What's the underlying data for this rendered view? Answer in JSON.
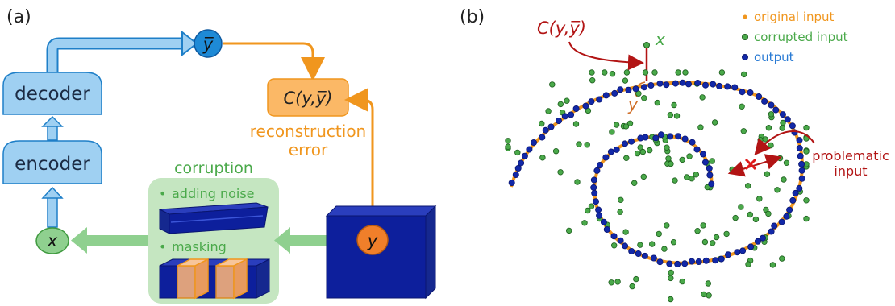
{
  "panels": {
    "a": "(a)",
    "b": "(b)"
  },
  "left": {
    "decoder": "decoder",
    "encoder": "encoder",
    "y_bar": "y̅",
    "x": "x",
    "y": "y",
    "cost": "C(y,y̅)",
    "recon_line1": "reconstruction",
    "recon_line2": "error",
    "corruption_title": "corruption",
    "noise": "adding noise",
    "masking": "masking"
  },
  "right": {
    "cost": "C(y,y̅)",
    "x": "x",
    "y": "y",
    "problem_line1": "problematic",
    "problem_line2": "input",
    "legend": [
      {
        "label": "original input",
        "color": "#f0961e"
      },
      {
        "label": "corrupted input",
        "color": "#4aa94a"
      },
      {
        "label": "output",
        "color": "#2a7bd4"
      }
    ]
  },
  "colors": {
    "blue_box": "#9fd0f2",
    "blue_arrow": "#5aaee8",
    "orange": "#f0961e",
    "green": "#6fbf6f",
    "dark_blue": "#0d1f9c",
    "red": "#b21414"
  }
}
